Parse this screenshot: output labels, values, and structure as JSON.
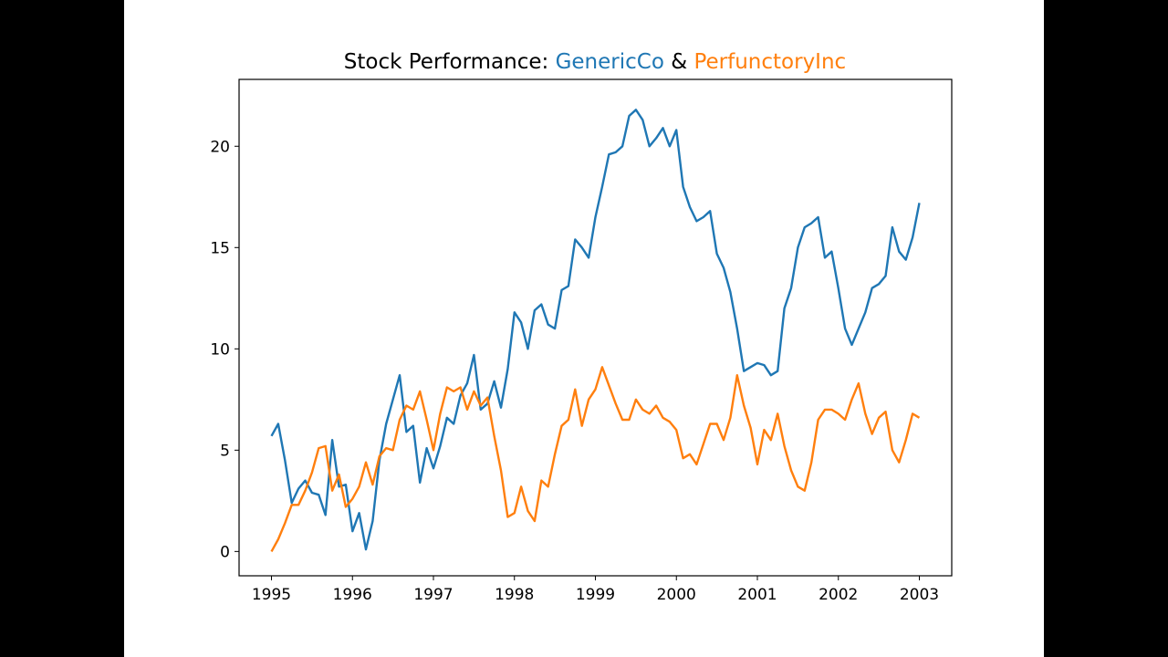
{
  "chart_data": {
    "type": "line",
    "title": {
      "prefix": "Stock Performance: ",
      "series_a": "GenericCo",
      "joiner": " & ",
      "series_b": "PerfunctoryInc"
    },
    "xlabel": "",
    "ylabel": "",
    "x_start": "1995-01",
    "x_frequency": "monthly",
    "xlim": [
      1994.6,
      2003.4
    ],
    "ylim": [
      -1.2,
      23.3
    ],
    "x_ticks": [
      "1995",
      "1996",
      "1997",
      "1998",
      "1999",
      "2000",
      "2001",
      "2002",
      "2003"
    ],
    "y_ticks": [
      0,
      5,
      10,
      15,
      20
    ],
    "grid": false,
    "legend": "none",
    "series": [
      {
        "name": "GenericCo",
        "color": "#1f77b4",
        "values": [
          5.7,
          6.3,
          4.5,
          2.4,
          3.1,
          3.5,
          2.9,
          2.8,
          1.8,
          5.5,
          3.2,
          3.3,
          1.0,
          1.9,
          0.1,
          1.5,
          4.5,
          6.3,
          7.5,
          8.7,
          5.9,
          6.2,
          3.4,
          5.1,
          4.1,
          5.2,
          6.6,
          6.3,
          7.7,
          8.3,
          9.7,
          7.0,
          7.3,
          8.4,
          7.1,
          9.0,
          11.8,
          11.3,
          10.0,
          11.9,
          12.2,
          11.2,
          11.0,
          12.9,
          13.1,
          15.4,
          15.0,
          14.5,
          16.5,
          18.0,
          19.6,
          19.7,
          20.0,
          21.5,
          21.8,
          21.3,
          20.0,
          20.4,
          20.9,
          20.0,
          20.8,
          18.0,
          17.0,
          16.3,
          16.5,
          16.8,
          14.7,
          14.0,
          12.8,
          11.0,
          8.9,
          9.1,
          9.3,
          9.2,
          8.7,
          8.9,
          12.0,
          13.0,
          15.0,
          16.0,
          16.2,
          16.5,
          14.5,
          14.8,
          13.0,
          11.0,
          10.2,
          11.0,
          11.8,
          13.0,
          13.2,
          13.6,
          16.0,
          14.8,
          14.4,
          15.5,
          17.2
        ]
      },
      {
        "name": "PerfunctoryInc",
        "color": "#ff7f0e",
        "values": [
          0.0,
          0.6,
          1.4,
          2.3,
          2.3,
          3.0,
          3.9,
          5.1,
          5.2,
          3.0,
          3.8,
          2.2,
          2.6,
          3.2,
          4.4,
          3.3,
          4.7,
          5.1,
          5.0,
          6.5,
          7.2,
          7.0,
          7.9,
          6.5,
          5.0,
          6.8,
          8.1,
          7.9,
          8.1,
          7.0,
          7.9,
          7.2,
          7.6,
          5.7,
          4.0,
          1.7,
          1.9,
          3.2,
          2.0,
          1.5,
          3.5,
          3.2,
          4.8,
          6.2,
          6.5,
          8.0,
          6.2,
          7.5,
          8.0,
          9.1,
          8.2,
          7.3,
          6.5,
          6.5,
          7.5,
          7.0,
          6.8,
          7.2,
          6.6,
          6.4,
          6.0,
          4.6,
          4.8,
          4.3,
          5.3,
          6.3,
          6.3,
          5.5,
          6.6,
          8.7,
          7.2,
          6.1,
          4.3,
          6.0,
          5.5,
          6.8,
          5.2,
          4.0,
          3.2,
          3.0,
          4.4,
          6.5,
          7.0,
          7.0,
          6.8,
          6.5,
          7.5,
          8.3,
          6.8,
          5.8,
          6.6,
          6.9,
          5.0,
          4.4,
          5.5,
          6.8,
          6.6
        ]
      }
    ]
  }
}
